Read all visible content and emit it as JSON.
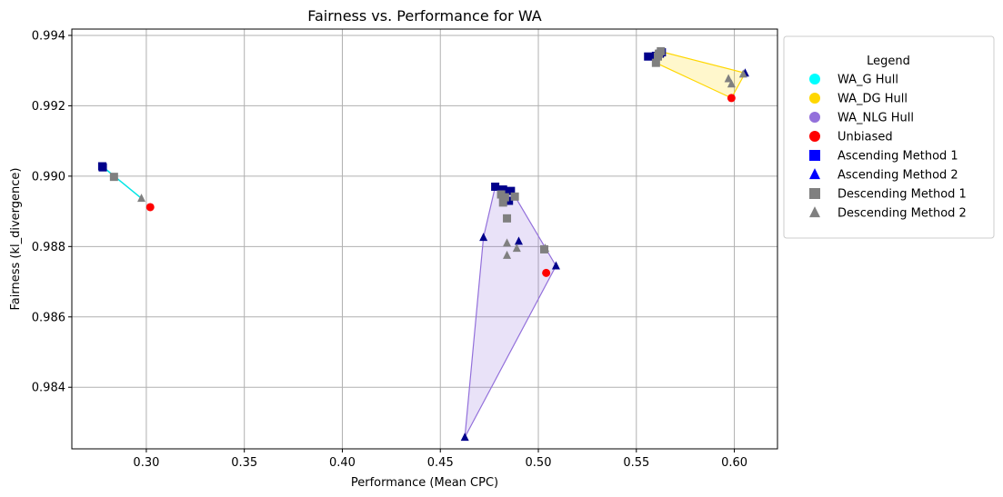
{
  "chart_data": {
    "type": "scatter",
    "title": "Fairness vs. Performance for WA",
    "xlabel": "Performance (Mean CPC)",
    "ylabel": "Fairness (kl_divergence)",
    "xlim": [
      0.262,
      0.622
    ],
    "ylim": [
      0.98225,
      0.99418
    ],
    "xticks": [
      0.3,
      0.35,
      0.4,
      0.45,
      0.5,
      0.55,
      0.6
    ],
    "xtick_labels": [
      "0.30",
      "0.35",
      "0.40",
      "0.45",
      "0.50",
      "0.55",
      "0.60"
    ],
    "yticks": [
      0.984,
      0.986,
      0.988,
      0.99,
      0.992,
      0.994
    ],
    "ytick_labels": [
      "0.984",
      "0.986",
      "0.988",
      "0.990",
      "0.992",
      "0.994"
    ],
    "grid": true,
    "legend": {
      "title": "Legend",
      "placement": "outside-right-top",
      "entries": [
        {
          "label": "WA_G Hull",
          "marker": "circle",
          "color": "#00ffff"
        },
        {
          "label": "WA_DG Hull",
          "marker": "circle",
          "color": "#ffd700"
        },
        {
          "label": "WA_NLG Hull",
          "marker": "circle",
          "color": "#9370db"
        },
        {
          "label": "Unbiased",
          "marker": "circle",
          "color": "#ff0000"
        },
        {
          "label": "Ascending Method 1",
          "marker": "square",
          "color": "#0000ff"
        },
        {
          "label": "Ascending Method 2",
          "marker": "triangle",
          "color": "#0000ff"
        },
        {
          "label": "Descending Method 1",
          "marker": "square",
          "color": "#808080"
        },
        {
          "label": "Descending Method 2",
          "marker": "triangle",
          "color": "#808080"
        }
      ]
    },
    "hulls": [
      {
        "name": "WA_G Hull",
        "stroke": "#00e5e5",
        "fill": "#00ffff",
        "fill_opacity": 0.2,
        "points": [
          [
            0.2775,
            0.99028
          ],
          [
            0.2975,
            0.98937
          ]
        ]
      },
      {
        "name": "WA_DG Hull",
        "stroke": "#ffd700",
        "fill": "#ffd700",
        "fill_opacity": 0.2,
        "points": [
          [
            0.556,
            0.9934
          ],
          [
            0.562,
            0.99355
          ],
          [
            0.6055,
            0.99293
          ],
          [
            0.5985,
            0.99222
          ],
          [
            0.56,
            0.99322
          ]
        ]
      },
      {
        "name": "WA_NLG Hull",
        "stroke": "#9370db",
        "fill": "#9370db",
        "fill_opacity": 0.2,
        "points": [
          [
            0.4625,
            0.98258
          ],
          [
            0.509,
            0.98745
          ],
          [
            0.486,
            0.98962
          ],
          [
            0.478,
            0.9897
          ],
          [
            0.472,
            0.98826
          ]
        ]
      }
    ],
    "series": [
      {
        "name": "Unbiased",
        "marker": "circle",
        "color": "#ff0000",
        "points": [
          [
            0.302,
            0.98912
          ],
          [
            0.504,
            0.98725
          ],
          [
            0.5985,
            0.99222
          ]
        ]
      },
      {
        "name": "Ascending Method 1",
        "marker": "square",
        "color": "#00008b",
        "points": [
          [
            0.2775,
            0.99028
          ],
          [
            0.2778,
            0.99025
          ],
          [
            0.478,
            0.9897
          ],
          [
            0.482,
            0.98962
          ],
          [
            0.486,
            0.98958
          ],
          [
            0.485,
            0.9893
          ],
          [
            0.556,
            0.9934
          ],
          [
            0.56,
            0.99342
          ],
          [
            0.562,
            0.99348
          ],
          [
            0.563,
            0.99352
          ]
        ]
      },
      {
        "name": "Ascending Method 2",
        "marker": "triangle",
        "color": "#00008b",
        "points": [
          [
            0.4625,
            0.98258
          ],
          [
            0.472,
            0.98826
          ],
          [
            0.49,
            0.98815
          ],
          [
            0.509,
            0.98745
          ],
          [
            0.6055,
            0.99293
          ]
        ]
      },
      {
        "name": "Descending Method 1",
        "marker": "square",
        "color": "#808080",
        "points": [
          [
            0.2835,
            0.98998
          ],
          [
            0.481,
            0.98948
          ],
          [
            0.483,
            0.9894
          ],
          [
            0.488,
            0.98942
          ],
          [
            0.482,
            0.98925
          ],
          [
            0.484,
            0.9888
          ],
          [
            0.503,
            0.98792
          ],
          [
            0.56,
            0.99322
          ],
          [
            0.561,
            0.9934
          ],
          [
            0.5625,
            0.99355
          ],
          [
            0.5615,
            0.99348
          ]
        ]
      },
      {
        "name": "Descending Method 2",
        "marker": "triangle",
        "color": "#808080",
        "points": [
          [
            0.2975,
            0.98937
          ],
          [
            0.484,
            0.9881
          ],
          [
            0.489,
            0.98795
          ],
          [
            0.484,
            0.98775
          ],
          [
            0.5035,
            0.98795
          ],
          [
            0.597,
            0.99277
          ],
          [
            0.5985,
            0.99262
          ],
          [
            0.6045,
            0.9929
          ]
        ]
      }
    ]
  }
}
